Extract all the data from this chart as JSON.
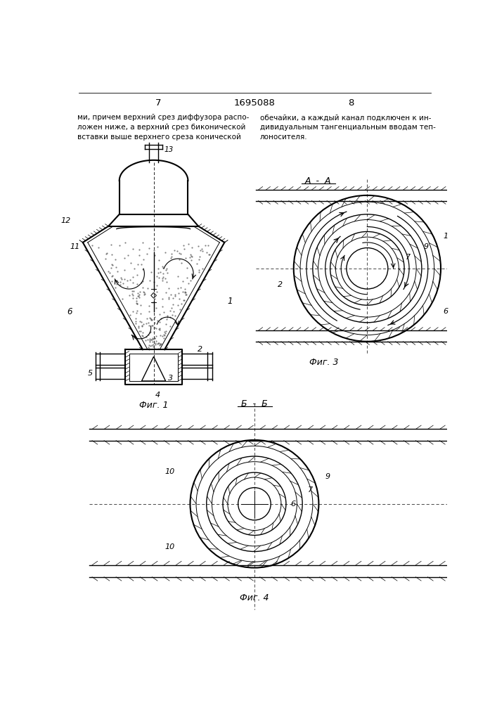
{
  "page_number_left": "7",
  "page_number_center": "1695088",
  "page_number_right": "8",
  "text_left": "ми, причем верхний срез диффузора распо-\nложен ниже, а верхний срез биконической\nвставки выше верхнего среза конической",
  "text_right": "обечайки, а каждый канал подключен к ин-\nдивидуальным тангенциальным вводам теп-\nлоносителя.",
  "fig1_label": "Фиг. 1",
  "fig3_label": "Фиг. 3",
  "fig4_label": "Фиг. 4",
  "fig3_title": "А - А",
  "fig4_title": "Б - Б",
  "bg_color": "#ffffff",
  "line_color": "#000000"
}
